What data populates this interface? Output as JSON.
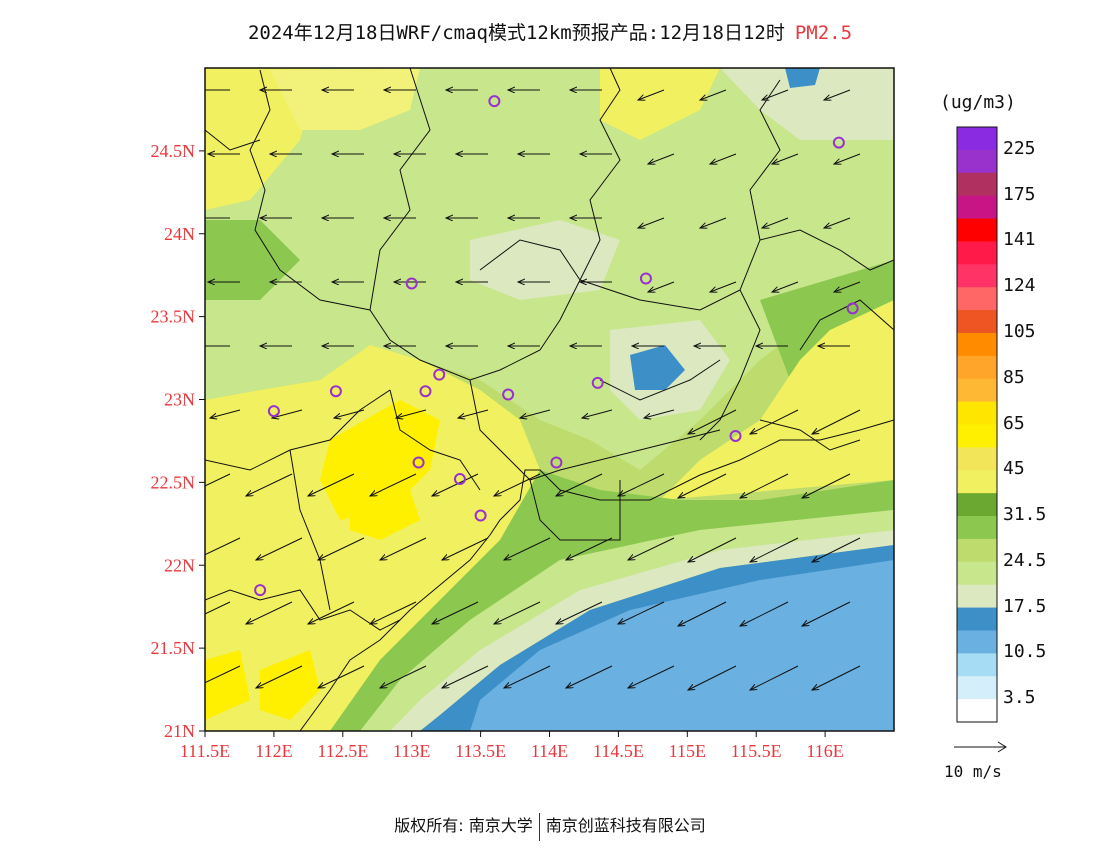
{
  "title": {
    "main": "2024年12月18日WRF/cmaq模式12km预报产品:12月18日12时",
    "pollutant": "PM2.5"
  },
  "lat_labels": [
    "24.5N",
    "24N",
    "23.5N",
    "23N",
    "22.5N",
    "22N",
    "21.5N",
    "21N"
  ],
  "lon_labels": [
    "111.5E",
    "112E",
    "112.5E",
    "113E",
    "113.5E",
    "114E",
    "114.5E",
    "115E",
    "115.5E",
    "116E"
  ],
  "colorbar": {
    "unit": "(ug/m3)",
    "labels": [
      "225",
      "175",
      "141",
      "124",
      "105",
      "85",
      "65",
      "45",
      "31.5",
      "24.5",
      "17.5",
      "10.5",
      "3.5"
    ],
    "colors_top_to_bottom": [
      "#8a2be2",
      "#9932cc",
      "#b03060",
      "#c71585",
      "#ff0000",
      "#ff1a4a",
      "#ff3366",
      "#ff6666",
      "#ee5522",
      "#ff8c00",
      "#ffa52a",
      "#ffb833",
      "#ffe600",
      "#fff000",
      "#f2e55a",
      "#f0f060",
      "#6aa832",
      "#8cc850",
      "#bedc6e",
      "#c8e68c",
      "#dce8c0",
      "#3d8fc8",
      "#6ab0e0",
      "#a6dcf4",
      "#d4eefa",
      "#ffffff"
    ]
  },
  "wind_legend": {
    "label": "10  m/s"
  },
  "footer": {
    "copyright": "版权所有: 南京大学",
    "company": "南京创蓝科技有限公司"
  },
  "colors": {
    "sea_deep": "#3d8fc8",
    "sea_light": "#6ab0e0",
    "pale_green": "#dce8c0",
    "light_green": "#c8e68c",
    "mid_green": "#bedc6e",
    "green": "#8cc850",
    "dark_green": "#6aa832",
    "yellow": "#f0f060",
    "yellow_strong": "#fff000",
    "axis_red": "#e8383d",
    "station": "#9932cc"
  },
  "map_extent": {
    "lon_min": 111.5,
    "lon_max": 116.5,
    "lat_min": 21.0,
    "lat_max": 25.0
  },
  "stations": [
    {
      "lon": 113.6,
      "lat": 24.8
    },
    {
      "lon": 116.1,
      "lat": 24.55
    },
    {
      "lon": 113.0,
      "lat": 23.7
    },
    {
      "lon": 114.7,
      "lat": 23.73
    },
    {
      "lon": 116.2,
      "lat": 23.55
    },
    {
      "lon": 113.2,
      "lat": 23.15
    },
    {
      "lon": 112.45,
      "lat": 23.05
    },
    {
      "lon": 113.1,
      "lat": 23.05
    },
    {
      "lon": 113.7,
      "lat": 23.03
    },
    {
      "lon": 114.35,
      "lat": 23.1
    },
    {
      "lon": 112.0,
      "lat": 22.93
    },
    {
      "lon": 113.05,
      "lat": 22.62
    },
    {
      "lon": 114.05,
      "lat": 22.62
    },
    {
      "lon": 113.35,
      "lat": 22.52
    },
    {
      "lon": 113.5,
      "lat": 22.3
    },
    {
      "lon": 115.35,
      "lat": 22.78
    },
    {
      "lon": 111.9,
      "lat": 21.85
    }
  ]
}
